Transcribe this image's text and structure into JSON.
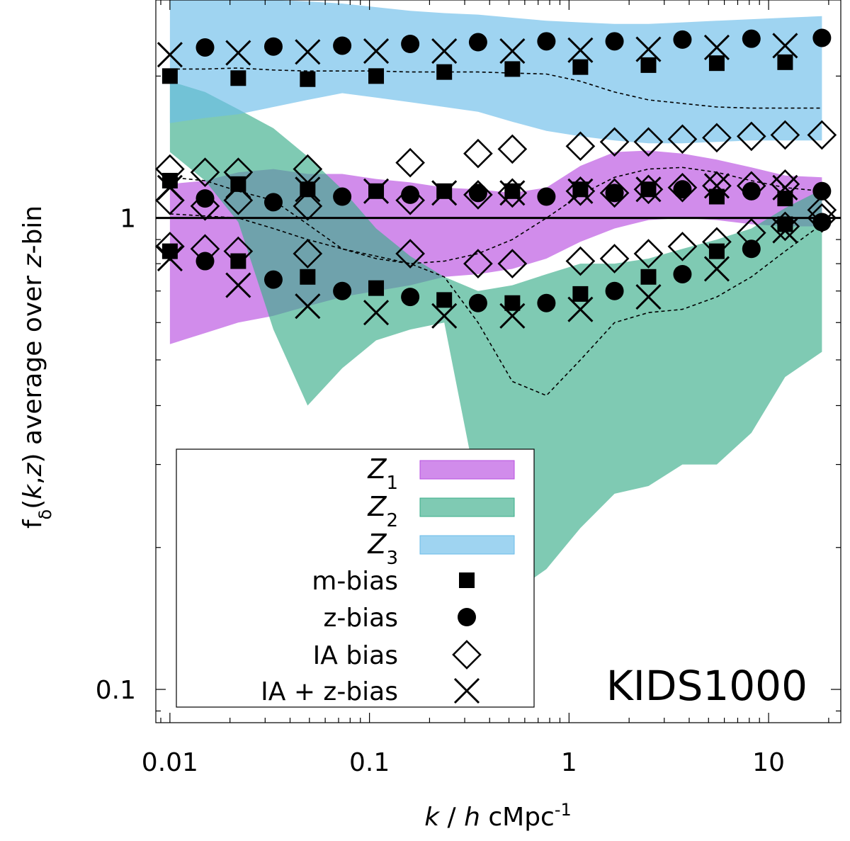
{
  "chart_data": {
    "type": "scatter",
    "title": "",
    "annotation": "KIDS1000",
    "xlabel": {
      "italic_k": "k",
      "sep": " / ",
      "italic_h": "h",
      "unit": " cMpc",
      "sup": "-1"
    },
    "ylabel": {
      "f": "f",
      "sub": "δ",
      "open": "(",
      "k": "k",
      "comma": ",",
      "z": "z",
      "rest": ") average over ",
      "zi": "z",
      "tail": "-bin"
    },
    "xscale": "log",
    "yscale": "log",
    "xlim": [
      0.0085,
      23
    ],
    "ylim": [
      0.085,
      2.9
    ],
    "x_ticks": [
      {
        "v": 0.01,
        "label": "0.01"
      },
      {
        "v": 0.1,
        "label": "0.1"
      },
      {
        "v": 1,
        "label": "1"
      },
      {
        "v": 10,
        "label": "10"
      }
    ],
    "y_ticks": [
      {
        "v": 0.1,
        "label": "0.1"
      },
      {
        "v": 1,
        "label": "1"
      }
    ],
    "reference_line": 1.0,
    "k_points": [
      0.01,
      0.015,
      0.022,
      0.033,
      0.049,
      0.073,
      0.108,
      0.16,
      0.237,
      0.35,
      0.52,
      0.77,
      1.14,
      1.69,
      2.5,
      3.7,
      5.5,
      8.2,
      12.1,
      18.5
    ],
    "bands": [
      {
        "name": "Z1",
        "sym": "Z",
        "sub": "1",
        "color": "#b84fe0",
        "upper": [
          1.18,
          1.2,
          1.25,
          1.27,
          1.24,
          1.24,
          1.21,
          1.19,
          1.16,
          1.15,
          1.13,
          1.16,
          1.29,
          1.38,
          1.39,
          1.37,
          1.33,
          1.28,
          1.23,
          1.22
        ],
        "lower": [
          0.54,
          0.57,
          0.6,
          0.62,
          0.65,
          0.68,
          0.7,
          0.72,
          0.75,
          0.76,
          0.78,
          0.82,
          0.89,
          0.95,
          0.99,
          1.0,
          0.99,
          0.97,
          0.96,
          0.96
        ]
      },
      {
        "name": "Z2",
        "sym": "Z",
        "sub": "2",
        "color": "#3aad8a",
        "upper": [
          1.95,
          1.85,
          1.7,
          1.55,
          1.35,
          1.15,
          0.95,
          0.83,
          0.75,
          0.7,
          0.72,
          0.76,
          0.8,
          0.8,
          0.82,
          0.86,
          0.9,
          0.95,
          1.05,
          1.15
        ],
        "lower": [
          1.38,
          1.2,
          0.98,
          0.58,
          0.4,
          0.48,
          0.55,
          0.58,
          0.6,
          0.26,
          0.16,
          0.18,
          0.22,
          0.26,
          0.27,
          0.3,
          0.3,
          0.35,
          0.46,
          0.52
        ]
      },
      {
        "name": "Z3",
        "sym": "Z",
        "sub": "3",
        "color": "#6bbde9",
        "upper": [
          3.12,
          3.0,
          2.95,
          2.9,
          2.88,
          2.85,
          2.8,
          2.75,
          2.72,
          2.7,
          2.66,
          2.62,
          2.6,
          2.58,
          2.58,
          2.6,
          2.62,
          2.64,
          2.66,
          2.68
        ],
        "lower": [
          1.59,
          1.63,
          1.66,
          1.72,
          1.78,
          1.84,
          1.8,
          1.76,
          1.72,
          1.68,
          1.6,
          1.53,
          1.49,
          1.46,
          1.44,
          1.44,
          1.45,
          1.46,
          1.46,
          1.46
        ]
      }
    ],
    "dashed": [
      [
        2.07,
        2.07,
        2.08,
        2.06,
        2.05,
        2.05,
        2.05,
        2.04,
        2.04,
        2.04,
        2.03,
        2.02,
        1.95,
        1.85,
        1.78,
        1.75,
        1.72,
        1.71,
        1.71,
        1.71
      ],
      [
        1.22,
        1.2,
        1.14,
        1.09,
        0.97,
        0.86,
        0.82,
        0.8,
        0.81,
        0.84,
        0.9,
        1.0,
        1.12,
        1.22,
        1.27,
        1.28,
        1.25,
        1.2,
        1.16,
        1.14
      ],
      [
        1.02,
        1.01,
        1.0,
        0.95,
        0.9,
        0.86,
        0.83,
        0.8,
        0.75,
        0.6,
        0.45,
        0.42,
        0.5,
        0.6,
        0.63,
        0.64,
        0.68,
        0.75,
        0.85,
        0.97
      ]
    ],
    "series": [
      {
        "name": "m-bias",
        "marker": "square",
        "values": [
          [
            2.0,
            1.2,
            0.85
          ],
          [
            null,
            null,
            null
          ],
          [
            1.98,
            1.18,
            0.81
          ],
          [
            null,
            null,
            null
          ],
          [
            1.97,
            1.15,
            0.75
          ],
          [
            null,
            null,
            null
          ],
          [
            2.0,
            1.14,
            0.71
          ],
          [
            null,
            null,
            null
          ],
          [
            2.04,
            1.14,
            0.67
          ],
          [
            null,
            null,
            null
          ],
          [
            2.07,
            1.14,
            0.66
          ],
          [
            null,
            null,
            null
          ],
          [
            2.09,
            1.15,
            0.69
          ],
          [
            null,
            null,
            null
          ],
          [
            2.11,
            1.15,
            0.75
          ],
          [
            null,
            null,
            null
          ],
          [
            2.13,
            1.11,
            0.85
          ],
          [
            null,
            null,
            null
          ],
          [
            2.14,
            1.1,
            0.97
          ],
          [
            null,
            null,
            null
          ]
        ]
      },
      {
        "name": "z-bias",
        "marker": "circle",
        "values": [
          [
            null,
            null,
            null
          ],
          [
            2.3,
            1.1,
            0.81
          ],
          [
            null,
            null,
            null
          ],
          [
            2.31,
            1.08,
            0.74
          ],
          [
            null,
            null,
            null
          ],
          [
            2.32,
            1.11,
            0.7
          ],
          [
            null,
            null,
            null
          ],
          [
            2.34,
            1.12,
            0.68
          ],
          [
            null,
            null,
            null
          ],
          [
            2.36,
            1.13,
            0.66
          ],
          [
            null,
            null,
            null
          ],
          [
            2.37,
            1.11,
            0.66
          ],
          [
            null,
            null,
            null
          ],
          [
            2.37,
            1.13,
            0.7
          ],
          [
            null,
            null,
            null
          ],
          [
            2.39,
            1.15,
            0.76
          ],
          [
            null,
            null,
            null
          ],
          [
            2.4,
            1.14,
            0.86
          ],
          [
            null,
            null,
            null
          ],
          [
            2.41,
            1.14,
            0.98
          ]
        ]
      },
      {
        "name": "IA bias",
        "marker": "diamond",
        "values": [
          [
            1.09,
            1.27,
            0.87
          ],
          [
            1.06,
            1.25,
            0.86
          ],
          [
            1.09,
            1.25,
            0.85
          ],
          [
            null,
            null,
            null
          ],
          [
            1.06,
            1.27,
            0.84
          ],
          [
            null,
            null,
            null
          ],
          [
            null,
            null,
            null
          ],
          [
            1.09,
            1.31,
            0.84
          ],
          [
            null,
            null,
            null
          ],
          [
            1.12,
            1.37,
            0.8
          ],
          [
            1.13,
            1.4,
            0.8
          ],
          [
            null,
            null,
            null
          ],
          [
            1.14,
            1.42,
            0.81
          ],
          [
            1.13,
            1.45,
            0.82
          ],
          [
            1.15,
            1.45,
            0.84
          ],
          [
            1.16,
            1.47,
            0.87
          ],
          [
            1.17,
            1.48,
            0.89
          ],
          [
            1.17,
            1.49,
            0.93
          ],
          [
            1.18,
            1.5,
            0.96
          ],
          [
            1.04,
            1.5,
            1.0
          ]
        ]
      },
      {
        "name": "IA + z-bias",
        "marker": "cross",
        "values": [
          [
            2.22,
            1.16,
            0.82
          ],
          [
            null,
            null,
            null
          ],
          [
            2.24,
            1.17,
            0.72
          ],
          [
            null,
            null,
            null
          ],
          [
            2.25,
            1.15,
            0.65
          ],
          [
            null,
            null,
            null
          ],
          [
            2.26,
            1.14,
            0.63
          ],
          [
            null,
            null,
            null
          ],
          [
            2.26,
            1.13,
            0.62
          ],
          [
            null,
            null,
            null
          ],
          [
            2.26,
            1.13,
            0.62
          ],
          [
            null,
            null,
            null
          ],
          [
            2.27,
            1.14,
            0.64
          ],
          [
            null,
            null,
            null
          ],
          [
            2.28,
            1.15,
            0.68
          ],
          [
            null,
            null,
            null
          ],
          [
            2.3,
            1.17,
            0.78
          ],
          [
            null,
            null,
            null
          ],
          [
            2.32,
            1.16,
            0.94
          ],
          [
            null,
            null,
            null
          ]
        ]
      }
    ],
    "legend": {
      "placement": "bottom-left"
    }
  }
}
